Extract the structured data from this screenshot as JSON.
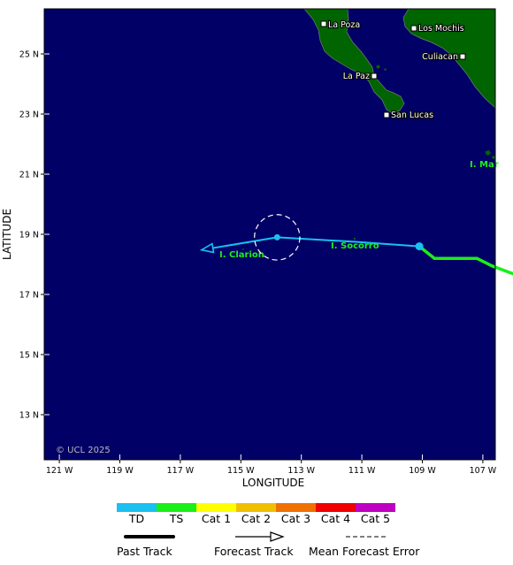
{
  "axes": {
    "xlabel": "LONGITUDE",
    "ylabel": "LATITUDE",
    "x_ticks": [
      "121 W",
      "119 W",
      "117 W",
      "115 W",
      "113 W",
      "111 W",
      "109 W",
      "107 W"
    ],
    "y_ticks": [
      "25 N",
      "23 N",
      "21 N",
      "19 N",
      "17 N",
      "15 N",
      "13 N"
    ]
  },
  "places": {
    "la_poza": "La Poza",
    "los_mochis": "Los Mochis",
    "culiacan": "Culiacan",
    "la_paz": "La Paz",
    "san_lucas": "San Lucas",
    "isla_socorro": "I. Socorro",
    "isla_clarion": "I. Clarion",
    "islas_marias": "I. Mar"
  },
  "copyright": "© UCL 2025",
  "colors": {
    "ocean": "#000066",
    "land": "#006400",
    "td": "#19c0f0",
    "ts": "#19f019",
    "cat1": "#ffff00",
    "cat2": "#f0c000",
    "cat3": "#f07000",
    "cat4": "#f00000",
    "cat5": "#c000c0"
  },
  "legend": {
    "scale": [
      "TD",
      "TS",
      "Cat 1",
      "Cat 2",
      "Cat 3",
      "Cat 4",
      "Cat 5"
    ],
    "past_track": "Past Track",
    "forecast_track": "Forecast Track",
    "mean_forecast_error": "Mean Forecast Error"
  },
  "track": {
    "past": [
      {
        "lon": -105.5,
        "lat": 17.5,
        "cls": "TS"
      },
      {
        "lon": -106.7,
        "lat": 17.95,
        "cls": "TS"
      },
      {
        "lon": -107.2,
        "lat": 18.2,
        "cls": "TS"
      },
      {
        "lon": -107.9,
        "lat": 18.2,
        "cls": "TS"
      },
      {
        "lon": -108.6,
        "lat": 18.2,
        "cls": "TS"
      },
      {
        "lon": -109.1,
        "lat": 18.6,
        "cls": "TD"
      }
    ],
    "forecast": [
      {
        "lon": -109.1,
        "lat": 18.6
      },
      {
        "lon": -111.2,
        "lat": 18.75
      },
      {
        "lon": -113.8,
        "lat": 18.9
      },
      {
        "lon": -116.3,
        "lat": 18.48
      }
    ],
    "current": {
      "lon": -109.1,
      "lat": 18.6
    },
    "error_circle": {
      "lon": -113.8,
      "lat": 18.9,
      "radius_deg": 0.75
    }
  }
}
